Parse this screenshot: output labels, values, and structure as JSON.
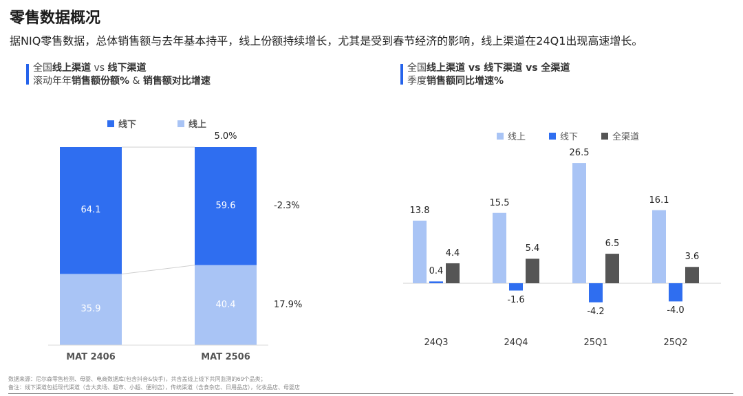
{
  "page": {
    "title": "零售数据概况",
    "subtitle": "据NIQ零售数据，总体销售额与去年基本持平，线上份额持续增长，尤其是受到春节经济的影响，线上渠道在24Q1出现高速增长。"
  },
  "left_panel": {
    "head_line1_a": "全国",
    "head_line1_b": "线上渠道",
    "head_line1_c": " vs ",
    "head_line1_d": "线下渠道",
    "head_line2_a": "滚动年年",
    "head_line2_b": "销售额份额%",
    "head_line2_c": " & ",
    "head_line2_d": "销售额对比增速",
    "legend_offline": "线下",
    "legend_online": "线上"
  },
  "right_panel": {
    "head_line1_a": "全国",
    "head_line1_b": "线上渠道 vs 线下渠道 vs 全渠道",
    "head_line2_a": "季度",
    "head_line2_b": "销售额同比增速%",
    "legend_online": "线上",
    "legend_offline": "线下",
    "legend_all": "全渠道"
  },
  "colors": {
    "offline": "#2f6ef0",
    "online": "#a9c4f5",
    "all": "#555555",
    "accent": "#2563eb"
  },
  "chart_data": [
    {
      "type": "bar",
      "stacked": true,
      "percent": true,
      "categories": [
        "MAT 2406",
        "MAT 2506"
      ],
      "series": [
        {
          "name": "线下",
          "values": [
            64.1,
            59.6
          ]
        },
        {
          "name": "线上",
          "values": [
            35.9,
            40.4
          ]
        }
      ],
      "total_growth_label": "5.0%",
      "growth_labels": {
        "线下": "-2.3%",
        "线上": "17.9%"
      },
      "ylim": [
        0,
        100
      ]
    },
    {
      "type": "bar",
      "categories": [
        "24Q3",
        "24Q4",
        "25Q1",
        "25Q2"
      ],
      "series": [
        {
          "name": "线上",
          "values": [
            13.8,
            15.5,
            26.5,
            16.1
          ]
        },
        {
          "name": "线下",
          "values": [
            0.4,
            -1.6,
            -4.2,
            -4.0
          ]
        },
        {
          "name": "全渠道",
          "values": [
            4.4,
            5.4,
            6.5,
            3.6
          ]
        }
      ]
    }
  ],
  "footnotes": {
    "line1": "数据来源：尼尔森零售检测、母婴、电商数据库(包含抖音&快手)，共含盖线上线下共同监测的69个品类；",
    "line2": "备注：线下渠道包括现代渠道（含大卖场、超市、小超、便利店），传统渠道（含食杂店、日用品店），化妆品店、母婴店"
  }
}
